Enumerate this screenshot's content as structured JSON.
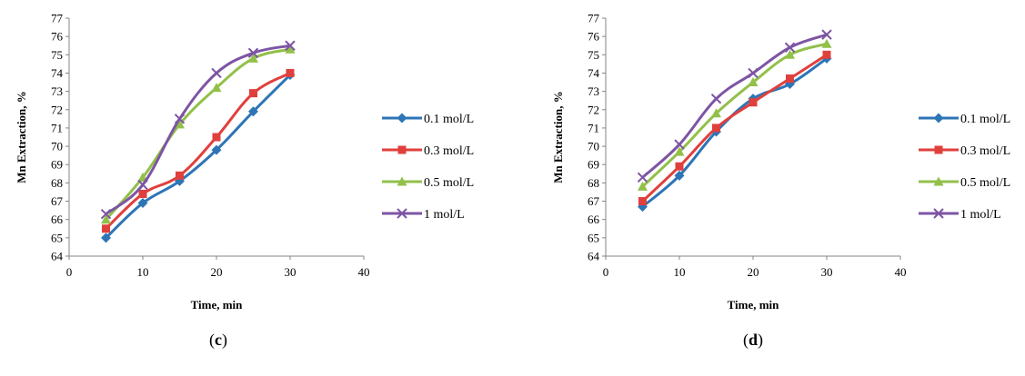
{
  "chart_data": [
    {
      "type": "line",
      "panel_label": "(c)",
      "xlabel": "Time, min",
      "ylabel": "Mn Extraction, %",
      "xlim": [
        0,
        40
      ],
      "ylim": [
        64,
        77
      ],
      "x_ticks": [
        0,
        10,
        20,
        30,
        40
      ],
      "y_ticks": [
        64,
        65,
        66,
        67,
        68,
        69,
        70,
        71,
        72,
        73,
        74,
        75,
        76,
        77
      ],
      "grid": false,
      "legend_position": "right",
      "x": [
        5,
        10,
        15,
        20,
        25,
        30
      ],
      "series": [
        {
          "name": "0.1 mol/L",
          "color": "#2e75b6",
          "marker": "diamond",
          "values": [
            65.0,
            66.9,
            68.1,
            69.8,
            71.9,
            73.9
          ]
        },
        {
          "name": "0.3 mol/L",
          "color": "#e0403c",
          "marker": "square",
          "values": [
            65.5,
            67.4,
            68.4,
            70.5,
            72.9,
            74.0
          ]
        },
        {
          "name": "0.5 mol/L",
          "color": "#92c04a",
          "marker": "triangle",
          "values": [
            66.0,
            68.3,
            71.2,
            73.2,
            74.8,
            75.3
          ]
        },
        {
          "name": "1 mol/L",
          "color": "#7d55a3",
          "marker": "cross",
          "values": [
            66.3,
            67.9,
            71.5,
            74.0,
            75.1,
            75.5
          ]
        }
      ]
    },
    {
      "type": "line",
      "panel_label": "(d)",
      "xlabel": "Time, min",
      "ylabel": "Mn Extraction, %",
      "xlim": [
        0,
        40
      ],
      "ylim": [
        64,
        77
      ],
      "x_ticks": [
        0,
        10,
        20,
        30,
        40
      ],
      "y_ticks": [
        64,
        65,
        66,
        67,
        68,
        69,
        70,
        71,
        72,
        73,
        74,
        75,
        76,
        77
      ],
      "grid": false,
      "legend_position": "right",
      "x": [
        5,
        10,
        15,
        20,
        25,
        30
      ],
      "series": [
        {
          "name": "0.1 mol/L",
          "color": "#2e75b6",
          "marker": "diamond",
          "values": [
            66.7,
            68.4,
            70.8,
            72.6,
            73.4,
            74.8
          ]
        },
        {
          "name": "0.3 mol/L",
          "color": "#e0403c",
          "marker": "square",
          "values": [
            67.0,
            68.9,
            71.0,
            72.4,
            73.7,
            75.0
          ]
        },
        {
          "name": "0.5 mol/L",
          "color": "#92c04a",
          "marker": "triangle",
          "values": [
            67.8,
            69.7,
            71.8,
            73.5,
            75.0,
            75.6
          ]
        },
        {
          "name": "1 mol/L",
          "color": "#7d55a3",
          "marker": "cross",
          "values": [
            68.3,
            70.1,
            72.6,
            74.0,
            75.4,
            76.1
          ]
        }
      ]
    }
  ]
}
